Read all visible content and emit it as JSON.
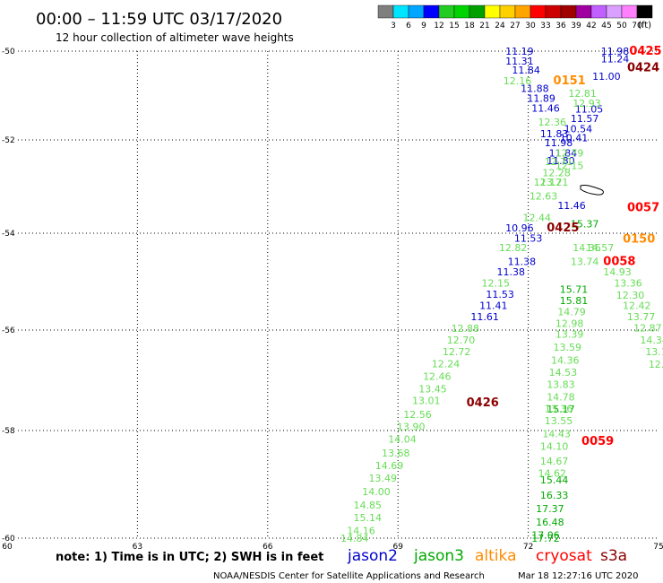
{
  "header": {
    "title": "00:00 – 11:59 UTC 03/17/2020",
    "subtitle": "12 hour collection of altimeter wave heights"
  },
  "colorbar": {
    "colors": [
      "#7f7f7f",
      "#00e5ff",
      "#00a6ff",
      "#0000ff",
      "#22cc22",
      "#00d400",
      "#00a000",
      "#ffff00",
      "#ffd000",
      "#ffa500",
      "#ff0000",
      "#cc0000",
      "#a00000",
      "#a000a0",
      "#c060ff",
      "#d9a0ff",
      "#ff80ff",
      "#000000"
    ],
    "labels": [
      "3",
      "6",
      "9",
      "12",
      "15",
      "18",
      "21",
      "24",
      "27",
      "30",
      "33",
      "36",
      "39",
      "42",
      "45",
      "50",
      "70"
    ],
    "unit": "(ft)"
  },
  "chart_data": {
    "type": "scatter",
    "xlim": [
      60,
      75
    ],
    "ylim": [
      -60,
      -50
    ],
    "xticks": [
      "60",
      "63",
      "66",
      "69",
      "72",
      "75"
    ],
    "yticks": [
      "-50",
      "-52",
      "-54",
      "-56",
      "-58",
      "-60"
    ],
    "grid": true,
    "series": [
      {
        "name": "jason2",
        "color": "#0000cc",
        "points": [
          {
            "x": 71.8,
            "y": -50.0,
            "v": "11.19"
          },
          {
            "x": 71.8,
            "y": -50.22,
            "v": "11.31"
          },
          {
            "x": 71.95,
            "y": -50.42,
            "v": "11.84"
          },
          {
            "x": 72.15,
            "y": -50.84,
            "v": "11.88"
          },
          {
            "x": 72.3,
            "y": -51.06,
            "v": "11.89"
          },
          {
            "x": 72.4,
            "y": -51.28,
            "v": "11.46"
          },
          {
            "x": 72.6,
            "y": -51.86,
            "v": "11.83"
          },
          {
            "x": 72.7,
            "y": -52.06,
            "v": "11.98"
          },
          {
            "x": 72.8,
            "y": -52.28,
            "v": "11.84"
          },
          {
            "x": 72.75,
            "y": -52.44,
            "v": "11.80"
          },
          {
            "x": 73.0,
            "y": -53.4,
            "v": "11.46"
          },
          {
            "x": 71.8,
            "y": -53.88,
            "v": "10.96"
          },
          {
            "x": 72.0,
            "y": -54.1,
            "v": "11.53"
          },
          {
            "x": 71.85,
            "y": -54.58,
            "v": "11.38"
          },
          {
            "x": 71.6,
            "y": -54.8,
            "v": "11.38"
          },
          {
            "x": 71.35,
            "y": -55.26,
            "v": "11.53"
          },
          {
            "x": 71.2,
            "y": -55.49,
            "v": "11.41"
          },
          {
            "x": 71.0,
            "y": -55.72,
            "v": "11.61"
          },
          {
            "x": 74.0,
            "y": -50.0,
            "v": "11.98"
          },
          {
            "x": 74.0,
            "y": -50.17,
            "v": "11.24"
          },
          {
            "x": 73.8,
            "y": -50.57,
            "v": "11.00"
          },
          {
            "x": 73.4,
            "y": -51.3,
            "v": "11.05"
          },
          {
            "x": 73.3,
            "y": -51.52,
            "v": "11.57"
          },
          {
            "x": 73.15,
            "y": -51.75,
            "v": "10.54"
          },
          {
            "x": 73.05,
            "y": -51.95,
            "v": "10.41"
          }
        ]
      },
      {
        "name": "jason3",
        "color": "#00aa00",
        "points": [
          {
            "x": 73.05,
            "y": -55.16,
            "v": "15.71"
          },
          {
            "x": 73.05,
            "y": -55.39,
            "v": "15.81"
          },
          {
            "x": 72.75,
            "y": -57.57,
            "v": "15.17"
          },
          {
            "x": 72.6,
            "y": -58.92,
            "v": "15.44"
          },
          {
            "x": 72.6,
            "y": -59.2,
            "v": "16.33"
          },
          {
            "x": 72.5,
            "y": -59.45,
            "v": "17.37"
          },
          {
            "x": 72.5,
            "y": -59.7,
            "v": "16.48"
          },
          {
            "x": 72.4,
            "y": -59.94,
            "v": "17.06"
          },
          {
            "x": 72.4,
            "y": -60.17,
            "v": "17.72"
          },
          {
            "x": 73.3,
            "y": -53.8,
            "v": "15.37"
          }
        ]
      },
      {
        "name": "cryosat",
        "color": "#ff0000",
        "points": [
          {
            "x": 74.7,
            "y": -50.0,
            "v": "0425"
          },
          {
            "x": 74.65,
            "y": -53.45,
            "v": "0057"
          },
          {
            "x": 74.1,
            "y": -54.58,
            "v": "0058"
          },
          {
            "x": 73.6,
            "y": -58.2,
            "v": "0059"
          }
        ]
      },
      {
        "name": "s3a",
        "color": "#8b0000",
        "points": [
          {
            "x": 74.65,
            "y": -50.37,
            "v": "0424"
          },
          {
            "x": 72.8,
            "y": -53.88,
            "v": "0425"
          },
          {
            "x": 70.95,
            "y": -57.45,
            "v": "0426"
          }
        ]
      },
      {
        "name": "altika",
        "color": "#ff8c00",
        "points": [
          {
            "x": 72.95,
            "y": -50.67,
            "v": "0151"
          },
          {
            "x": 74.55,
            "y": -54.12,
            "v": "0150"
          }
        ]
      },
      {
        "name": "",
        "color": "#66dd55",
        "points": [
          {
            "x": 71.75,
            "y": -50.67,
            "v": "12.16"
          },
          {
            "x": 72.7,
            "y": -52.46,
            "v": "12.71"
          },
          {
            "x": 72.45,
            "y": -52.9,
            "v": "12.17"
          },
          {
            "x": 72.35,
            "y": -53.2,
            "v": "12.63"
          },
          {
            "x": 72.2,
            "y": -53.66,
            "v": "12.44"
          },
          {
            "x": 71.65,
            "y": -54.3,
            "v": "12.82"
          },
          {
            "x": 71.25,
            "y": -55.03,
            "v": "12.15"
          },
          {
            "x": 70.55,
            "y": -55.96,
            "v": "12.88"
          },
          {
            "x": 70.45,
            "y": -56.2,
            "v": "12.70"
          },
          {
            "x": 70.35,
            "y": -56.43,
            "v": "12.72"
          },
          {
            "x": 70.1,
            "y": -56.67,
            "v": "12.24"
          },
          {
            "x": 69.9,
            "y": -56.92,
            "v": "12.46"
          },
          {
            "x": 69.8,
            "y": -57.17,
            "v": "13.45"
          },
          {
            "x": 69.65,
            "y": -57.4,
            "v": "13.01"
          },
          {
            "x": 69.45,
            "y": -57.68,
            "v": "12.56"
          },
          {
            "x": 69.3,
            "y": -57.92,
            "v": "13.90"
          },
          {
            "x": 69.1,
            "y": -58.16,
            "v": "14.04"
          },
          {
            "x": 68.95,
            "y": -58.42,
            "v": "13.68"
          },
          {
            "x": 68.8,
            "y": -58.65,
            "v": "14.69"
          },
          {
            "x": 68.65,
            "y": -58.88,
            "v": "13.49"
          },
          {
            "x": 68.5,
            "y": -59.13,
            "v": "14.00"
          },
          {
            "x": 68.3,
            "y": -59.38,
            "v": "14.85"
          },
          {
            "x": 68.3,
            "y": -59.62,
            "v": "15.14"
          },
          {
            "x": 68.15,
            "y": -59.86,
            "v": "14.16"
          },
          {
            "x": 68.0,
            "y": -60.1,
            "v": "14.84"
          },
          {
            "x": 73.35,
            "y": -51.17,
            "v": "12.93"
          },
          {
            "x": 73.25,
            "y": -50.95,
            "v": "12.81"
          },
          {
            "x": 72.55,
            "y": -51.6,
            "v": "12.36"
          },
          {
            "x": 72.95,
            "y": -52.28,
            "v": "12.79"
          },
          {
            "x": 72.95,
            "y": -52.55,
            "v": "12.15"
          },
          {
            "x": 72.65,
            "y": -52.7,
            "v": "12.28"
          },
          {
            "x": 72.6,
            "y": -52.9,
            "v": "13.21"
          },
          {
            "x": 73.35,
            "y": -54.3,
            "v": "14.36"
          },
          {
            "x": 73.65,
            "y": -54.3,
            "v": "14.57"
          },
          {
            "x": 73.3,
            "y": -54.58,
            "v": "13.74"
          },
          {
            "x": 73.0,
            "y": -55.62,
            "v": "14.79"
          },
          {
            "x": 72.95,
            "y": -55.86,
            "v": "12.98"
          },
          {
            "x": 72.95,
            "y": -56.08,
            "v": "13.39"
          },
          {
            "x": 72.9,
            "y": -56.34,
            "v": "13.59"
          },
          {
            "x": 72.85,
            "y": -56.6,
            "v": "14.36"
          },
          {
            "x": 72.8,
            "y": -56.84,
            "v": "14.53"
          },
          {
            "x": 72.75,
            "y": -57.08,
            "v": "13.83"
          },
          {
            "x": 72.75,
            "y": -57.33,
            "v": "14.78"
          },
          {
            "x": 72.7,
            "y": -57.56,
            "v": "13.36"
          },
          {
            "x": 72.7,
            "y": -57.8,
            "v": "13.55"
          },
          {
            "x": 72.65,
            "y": -58.06,
            "v": "14.43"
          },
          {
            "x": 72.6,
            "y": -58.29,
            "v": "14.10"
          },
          {
            "x": 72.6,
            "y": -58.57,
            "v": "14.67"
          },
          {
            "x": 72.55,
            "y": -58.79,
            "v": "14.62"
          },
          {
            "x": 74.05,
            "y": -54.8,
            "v": "14.93"
          },
          {
            "x": 74.3,
            "y": -55.03,
            "v": "13.36"
          },
          {
            "x": 74.35,
            "y": -55.28,
            "v": "12.30"
          },
          {
            "x": 74.5,
            "y": -55.49,
            "v": "12.42"
          },
          {
            "x": 74.6,
            "y": -55.72,
            "v": "13.77"
          },
          {
            "x": 74.75,
            "y": -55.95,
            "v": "12.87"
          },
          {
            "x": 74.9,
            "y": -56.2,
            "v": "14.34"
          },
          {
            "x": 74.95,
            "y": -56.43,
            "v": "13.1"
          },
          {
            "x": 74.95,
            "y": -56.68,
            "v": "12."
          }
        ]
      }
    ]
  },
  "legend": {
    "items": [
      {
        "label": "jason2",
        "color": "#0000cc"
      },
      {
        "label": "jason3",
        "color": "#00aa00"
      },
      {
        "label": "altika",
        "color": "#ff8c00"
      },
      {
        "label": "cryosat",
        "color": "#ff0000"
      },
      {
        "label": "s3a",
        "color": "#8b0000"
      }
    ]
  },
  "footer": {
    "note": "note:  1) Time is in UTC;  2) SWH is in feet",
    "credit": "NOAA/NESDIS Center for Satellite Applications and Research",
    "timestamp": "Mar 18 12:27:16 UTC 2020"
  }
}
